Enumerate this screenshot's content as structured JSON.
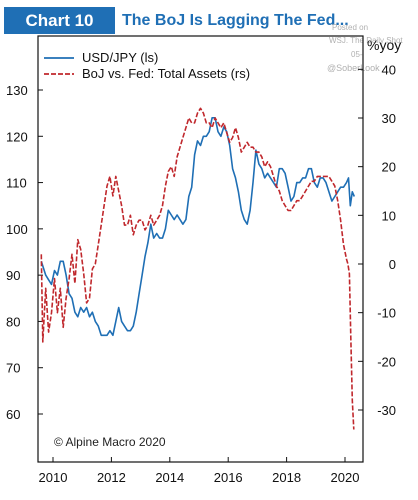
{
  "badge": "Chart 10",
  "title": "The BoJ Is Lagging The Fed...",
  "watermark": {
    "line1": "Posted on",
    "line2": "WSJ. The Daily Shot",
    "line3": "05-",
    "handle": "@SoberLook"
  },
  "credit": "© Alpine Macro 2020",
  "colors": {
    "usdjpy": "#1f6fb5",
    "boj_fed": "#c0282d",
    "badge": "#1f6fb5"
  },
  "chart_data": {
    "type": "line",
    "title": "The BoJ Is Lagging The Fed...",
    "right_unit_label": "%yoy",
    "legend_position": "top-left",
    "grid": false,
    "x_ticks": [
      "2010",
      "2012",
      "2014",
      "2016",
      "2018",
      "2020"
    ],
    "left_axis": {
      "ylim": [
        53,
        140
      ],
      "ticks": [
        "60",
        "70",
        "80",
        "90",
        "100",
        "110",
        "120",
        "130"
      ]
    },
    "right_axis": {
      "ylim": [
        -38,
        48
      ],
      "ticks": [
        "-30",
        "-20",
        "-10",
        "0",
        "10",
        "20",
        "30",
        "40"
      ]
    },
    "series": [
      {
        "name": "USD/JPY (ls)",
        "axis": "left",
        "style": "solid",
        "points": [
          [
            2009.6,
            93
          ],
          [
            2009.75,
            90
          ],
          [
            2009.85,
            89
          ],
          [
            2009.95,
            88
          ],
          [
            2010.05,
            91
          ],
          [
            2010.15,
            90
          ],
          [
            2010.25,
            93
          ],
          [
            2010.35,
            93
          ],
          [
            2010.45,
            90
          ],
          [
            2010.55,
            86
          ],
          [
            2010.65,
            85
          ],
          [
            2010.75,
            82
          ],
          [
            2010.85,
            81
          ],
          [
            2010.95,
            83
          ],
          [
            2011.05,
            82
          ],
          [
            2011.15,
            83
          ],
          [
            2011.25,
            81
          ],
          [
            2011.35,
            82
          ],
          [
            2011.45,
            80
          ],
          [
            2011.55,
            79
          ],
          [
            2011.65,
            77
          ],
          [
            2011.75,
            77
          ],
          [
            2011.85,
            77
          ],
          [
            2011.95,
            78
          ],
          [
            2012.05,
            77
          ],
          [
            2012.15,
            80
          ],
          [
            2012.25,
            83
          ],
          [
            2012.35,
            80
          ],
          [
            2012.45,
            79
          ],
          [
            2012.55,
            78
          ],
          [
            2012.65,
            78
          ],
          [
            2012.75,
            79
          ],
          [
            2012.85,
            82
          ],
          [
            2012.95,
            86
          ],
          [
            2013.05,
            90
          ],
          [
            2013.15,
            94
          ],
          [
            2013.25,
            97
          ],
          [
            2013.35,
            101
          ],
          [
            2013.45,
            98
          ],
          [
            2013.55,
            99
          ],
          [
            2013.65,
            98
          ],
          [
            2013.75,
            98
          ],
          [
            2013.85,
            100
          ],
          [
            2013.95,
            104
          ],
          [
            2014.05,
            103
          ],
          [
            2014.15,
            102
          ],
          [
            2014.25,
            103
          ],
          [
            2014.35,
            102
          ],
          [
            2014.45,
            101
          ],
          [
            2014.55,
            102
          ],
          [
            2014.65,
            107
          ],
          [
            2014.75,
            109
          ],
          [
            2014.85,
            116
          ],
          [
            2014.95,
            119
          ],
          [
            2015.05,
            118
          ],
          [
            2015.15,
            120
          ],
          [
            2015.25,
            120
          ],
          [
            2015.35,
            121
          ],
          [
            2015.45,
            124
          ],
          [
            2015.55,
            124
          ],
          [
            2015.65,
            121
          ],
          [
            2015.75,
            120
          ],
          [
            2015.85,
            122
          ],
          [
            2015.95,
            121
          ],
          [
            2016.05,
            118
          ],
          [
            2016.15,
            113
          ],
          [
            2016.25,
            111
          ],
          [
            2016.35,
            108
          ],
          [
            2016.45,
            104
          ],
          [
            2016.55,
            102
          ],
          [
            2016.65,
            101
          ],
          [
            2016.75,
            104
          ],
          [
            2016.85,
            110
          ],
          [
            2016.95,
            117
          ],
          [
            2017.05,
            114
          ],
          [
            2017.15,
            113
          ],
          [
            2017.25,
            111
          ],
          [
            2017.35,
            112
          ],
          [
            2017.45,
            111
          ],
          [
            2017.55,
            110
          ],
          [
            2017.65,
            109
          ],
          [
            2017.75,
            113
          ],
          [
            2017.85,
            113
          ],
          [
            2017.95,
            112
          ],
          [
            2018.05,
            109
          ],
          [
            2018.15,
            106
          ],
          [
            2018.25,
            107
          ],
          [
            2018.35,
            110
          ],
          [
            2018.45,
            110
          ],
          [
            2018.55,
            111
          ],
          [
            2018.65,
            111
          ],
          [
            2018.75,
            113
          ],
          [
            2018.85,
            113
          ],
          [
            2018.95,
            110
          ],
          [
            2019.05,
            109
          ],
          [
            2019.15,
            111
          ],
          [
            2019.25,
            111
          ],
          [
            2019.35,
            110
          ],
          [
            2019.45,
            108
          ],
          [
            2019.55,
            106
          ],
          [
            2019.65,
            107
          ],
          [
            2019.75,
            108
          ],
          [
            2019.85,
            109
          ],
          [
            2019.95,
            109
          ],
          [
            2020.05,
            110
          ],
          [
            2020.12,
            111
          ],
          [
            2020.18,
            105
          ],
          [
            2020.25,
            108
          ],
          [
            2020.32,
            107
          ]
        ]
      },
      {
        "name": "BoJ vs. Fed: Total Assets (rs)",
        "axis": "right",
        "style": "dashed",
        "points": [
          [
            2009.6,
            2
          ],
          [
            2009.65,
            -16
          ],
          [
            2009.75,
            -5
          ],
          [
            2009.85,
            -14
          ],
          [
            2009.95,
            -10
          ],
          [
            2010.05,
            -3
          ],
          [
            2010.15,
            -10
          ],
          [
            2010.25,
            -5
          ],
          [
            2010.35,
            -13
          ],
          [
            2010.45,
            -7
          ],
          [
            2010.55,
            -3
          ],
          [
            2010.65,
            2
          ],
          [
            2010.75,
            -4
          ],
          [
            2010.85,
            5
          ],
          [
            2010.95,
            3
          ],
          [
            2011.05,
            -2
          ],
          [
            2011.15,
            -8
          ],
          [
            2011.25,
            -7
          ],
          [
            2011.35,
            -1
          ],
          [
            2011.45,
            0
          ],
          [
            2011.55,
            4
          ],
          [
            2011.65,
            8
          ],
          [
            2011.75,
            12
          ],
          [
            2011.85,
            16
          ],
          [
            2011.95,
            18
          ],
          [
            2012.05,
            14
          ],
          [
            2012.15,
            18
          ],
          [
            2012.25,
            15
          ],
          [
            2012.35,
            12
          ],
          [
            2012.45,
            8
          ],
          [
            2012.55,
            8
          ],
          [
            2012.65,
            10
          ],
          [
            2012.75,
            6
          ],
          [
            2012.85,
            8
          ],
          [
            2012.95,
            9
          ],
          [
            2013.05,
            9
          ],
          [
            2013.15,
            7
          ],
          [
            2013.25,
            8
          ],
          [
            2013.35,
            10
          ],
          [
            2013.45,
            8
          ],
          [
            2013.55,
            9
          ],
          [
            2013.65,
            10
          ],
          [
            2013.75,
            12
          ],
          [
            2013.85,
            16
          ],
          [
            2013.95,
            19
          ],
          [
            2014.05,
            20
          ],
          [
            2014.15,
            18
          ],
          [
            2014.25,
            22
          ],
          [
            2014.35,
            24
          ],
          [
            2014.45,
            26
          ],
          [
            2014.55,
            28
          ],
          [
            2014.65,
            30
          ],
          [
            2014.75,
            29
          ],
          [
            2014.85,
            29
          ],
          [
            2014.95,
            31
          ],
          [
            2015.05,
            32
          ],
          [
            2015.15,
            31
          ],
          [
            2015.25,
            29
          ],
          [
            2015.35,
            29
          ],
          [
            2015.45,
            28
          ],
          [
            2015.55,
            30
          ],
          [
            2015.65,
            29
          ],
          [
            2015.75,
            28
          ],
          [
            2015.85,
            29
          ],
          [
            2015.95,
            27
          ],
          [
            2016.05,
            25
          ],
          [
            2016.15,
            26
          ],
          [
            2016.25,
            28
          ],
          [
            2016.35,
            26
          ],
          [
            2016.45,
            23
          ],
          [
            2016.55,
            24
          ],
          [
            2016.65,
            25
          ],
          [
            2016.75,
            24
          ],
          [
            2016.85,
            24
          ],
          [
            2016.95,
            23
          ],
          [
            2017.05,
            23
          ],
          [
            2017.15,
            22
          ],
          [
            2017.25,
            20
          ],
          [
            2017.35,
            21
          ],
          [
            2017.45,
            20
          ],
          [
            2017.55,
            18
          ],
          [
            2017.65,
            16
          ],
          [
            2017.75,
            15
          ],
          [
            2017.85,
            13
          ],
          [
            2017.95,
            12
          ],
          [
            2018.05,
            11
          ],
          [
            2018.15,
            11
          ],
          [
            2018.25,
            12
          ],
          [
            2018.35,
            13
          ],
          [
            2018.45,
            13
          ],
          [
            2018.55,
            14
          ],
          [
            2018.65,
            15
          ],
          [
            2018.75,
            16
          ],
          [
            2018.85,
            17
          ],
          [
            2018.95,
            17
          ],
          [
            2019.05,
            18
          ],
          [
            2019.15,
            18
          ],
          [
            2019.25,
            18
          ],
          [
            2019.35,
            18
          ],
          [
            2019.45,
            18
          ],
          [
            2019.55,
            17
          ],
          [
            2019.65,
            16
          ],
          [
            2019.75,
            13
          ],
          [
            2019.85,
            9
          ],
          [
            2019.95,
            4
          ],
          [
            2020.05,
            1
          ],
          [
            2020.1,
            0
          ],
          [
            2020.15,
            -2
          ],
          [
            2020.2,
            -15
          ],
          [
            2020.25,
            -28
          ],
          [
            2020.3,
            -34
          ]
        ]
      }
    ]
  }
}
